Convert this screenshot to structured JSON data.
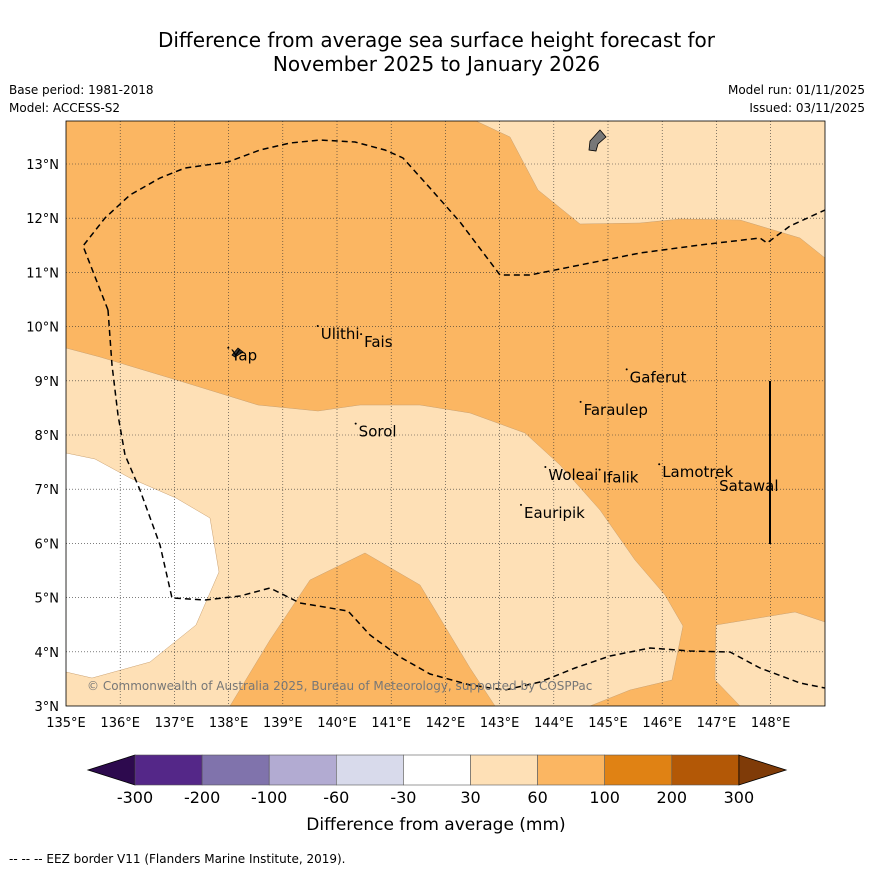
{
  "title": {
    "line1": "Difference from average sea surface height forecast for",
    "line2": "November 2025 to January 2026"
  },
  "meta": {
    "base_period": "Base period: 1981-2018",
    "model": "Model: ACCESS-S2",
    "model_run": "Model run: 01/11/2025",
    "issued": "Issued: 03/11/2025"
  },
  "map": {
    "lon_range": [
      135,
      149
    ],
    "lat_range": [
      3,
      13.8
    ],
    "lon_ticks": [
      "135°E",
      "136°E",
      "137°E",
      "138°E",
      "139°E",
      "140°E",
      "141°E",
      "142°E",
      "143°E",
      "144°E",
      "145°E",
      "146°E",
      "147°E",
      "148°E"
    ],
    "lat_ticks": [
      "13°N",
      "12°N",
      "11°N",
      "10°N",
      "9°N",
      "8°N",
      "7°N",
      "6°N",
      "5°N",
      "4°N",
      "3°N"
    ],
    "places": [
      {
        "name": "Yap",
        "lon": 138.05,
        "lat": 9.5
      },
      {
        "name": "Ulithi",
        "lon": 139.7,
        "lat": 9.9
      },
      {
        "name": "Fais",
        "lon": 140.5,
        "lat": 9.75
      },
      {
        "name": "Gaferut",
        "lon": 145.4,
        "lat": 9.1
      },
      {
        "name": "Faraulep",
        "lon": 144.55,
        "lat": 8.5
      },
      {
        "name": "Sorol",
        "lon": 140.4,
        "lat": 8.1
      },
      {
        "name": "Lamotrek",
        "lon": 146.0,
        "lat": 7.35
      },
      {
        "name": "Woleai",
        "lon": 143.9,
        "lat": 7.3
      },
      {
        "name": "Ifalik",
        "lon": 144.9,
        "lat": 7.25
      },
      {
        "name": "Satawal",
        "lon": 147.05,
        "lat": 7.1
      },
      {
        "name": "Eauripik",
        "lon": 143.45,
        "lat": 6.6
      }
    ],
    "copyright": "© Commonwealth of Australia 2025, Bureau of Meteorology, supported by COSPPac"
  },
  "colorbar": {
    "label": "Difference from average (mm)",
    "tick_labels": [
      "-300",
      "-200",
      "-100",
      "-60",
      "-30",
      "30",
      "60",
      "100",
      "200",
      "300"
    ],
    "colors": {
      "under": "#2d0a4e",
      "bins": [
        "#542788",
        "#8073ac",
        "#b2abd2",
        "#d8daeb",
        "#ffffff",
        "#fee0b6",
        "#fbb662",
        "#e08214",
        "#b35806"
      ],
      "over": "#7f3b08"
    }
  },
  "footer": "--  --  -- EEZ border V11 (Flanders Marine Institute, 2019)."
}
